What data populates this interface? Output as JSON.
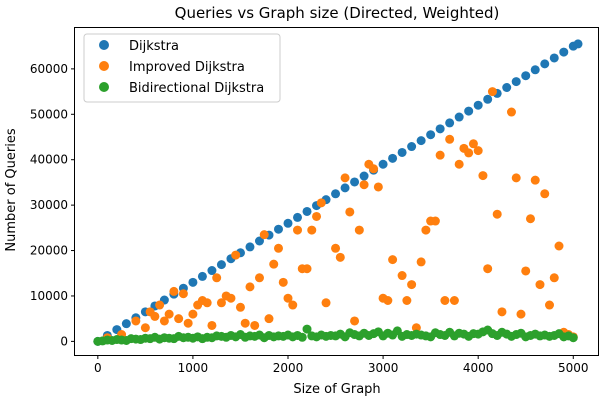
{
  "chart_data": {
    "type": "scatter",
    "title": "Queries vs Graph size (Directed, Weighted)",
    "xlabel": "Size of Graph",
    "ylabel": "Number of Queries",
    "xlim": [
      -240,
      5260
    ],
    "ylim": [
      -3000,
      69000
    ],
    "xticks": [
      0,
      1000,
      2000,
      3000,
      4000,
      5000
    ],
    "yticks": [
      0,
      10000,
      20000,
      30000,
      40000,
      50000,
      60000
    ],
    "grid": false,
    "legend_position": "top-left",
    "series": [
      {
        "name": "Dijkstra",
        "color": "#1f77b4",
        "x": [
          0,
          200,
          400,
          600,
          800,
          1000,
          1200,
          1400,
          1600,
          1800,
          2000,
          2200,
          2400,
          2600,
          2800,
          3000,
          3200,
          3400,
          3600,
          3800,
          4000,
          4200,
          4400,
          4600,
          4800,
          5000,
          100,
          300,
          500,
          700,
          900,
          1100,
          1300,
          1500,
          1700,
          1900,
          2100,
          2300,
          2500,
          2700,
          2900,
          3100,
          3300,
          3500,
          3700,
          3900,
          4100,
          4300,
          4500,
          4700,
          4900,
          5050
        ],
        "y": [
          0,
          2600,
          5200,
          7800,
          10400,
          13000,
          15600,
          18200,
          20800,
          23400,
          26000,
          28600,
          31200,
          33800,
          36400,
          39000,
          41600,
          44200,
          46800,
          49400,
          52000,
          54600,
          57200,
          59800,
          62400,
          65000,
          1300,
          3900,
          6500,
          9100,
          11700,
          14300,
          16900,
          19500,
          22100,
          24700,
          27300,
          29900,
          32500,
          35100,
          37700,
          40300,
          42900,
          45500,
          48100,
          50700,
          53300,
          55900,
          58500,
          61100,
          63700,
          65500
        ]
      },
      {
        "name": "Improved Dijkstra",
        "color": "#ff7f0e",
        "x": [
          100,
          250,
          400,
          500,
          550,
          600,
          650,
          700,
          750,
          800,
          850,
          900,
          950,
          1000,
          1050,
          1100,
          1150,
          1200,
          1250,
          1300,
          1350,
          1400,
          1450,
          1500,
          1550,
          1600,
          1650,
          1700,
          1750,
          1800,
          1850,
          1900,
          1950,
          2000,
          2050,
          2100,
          2150,
          2200,
          2250,
          2300,
          2350,
          2400,
          2500,
          2550,
          2600,
          2650,
          2700,
          2750,
          2800,
          2850,
          2900,
          2950,
          3000,
          3050,
          3100,
          3200,
          3250,
          3300,
          3350,
          3400,
          3450,
          3500,
          3550,
          3600,
          3650,
          3700,
          3750,
          3800,
          3850,
          3900,
          3950,
          4000,
          4050,
          4100,
          4150,
          4200,
          4250,
          4350,
          4400,
          4450,
          4500,
          4550,
          4600,
          4650,
          4700,
          4750,
          4800,
          4850,
          4900,
          4950,
          5000
        ],
        "y": [
          800,
          1500,
          4500,
          3000,
          6500,
          5500,
          8000,
          4500,
          6000,
          11000,
          5000,
          10500,
          4000,
          6000,
          8000,
          9000,
          8500,
          3500,
          14000,
          8500,
          10000,
          9500,
          19000,
          7500,
          4000,
          12000,
          3500,
          14000,
          23500,
          5000,
          17000,
          20500,
          13000,
          9500,
          8000,
          24500,
          16000,
          16000,
          24500,
          27500,
          30500,
          8500,
          20500,
          18500,
          36000,
          28500,
          4500,
          24500,
          34500,
          39000,
          38000,
          34000,
          9500,
          9000,
          18000,
          14500,
          9000,
          12500,
          3000,
          17500,
          24500,
          26500,
          26500,
          41000,
          9000,
          44500,
          9000,
          39000,
          42500,
          41500,
          43500,
          42000,
          36500,
          16000,
          55000,
          28000,
          6500,
          50500,
          36000,
          6000,
          15500,
          27000,
          35500,
          12500,
          32500,
          8000,
          14000,
          21000,
          2000,
          1500,
          1000
        ]
      },
      {
        "name": "Bidirectional Dijkstra",
        "color": "#2ca02c",
        "x": [
          0,
          50,
          100,
          150,
          200,
          250,
          300,
          350,
          400,
          450,
          500,
          550,
          600,
          650,
          700,
          750,
          800,
          850,
          900,
          950,
          1000,
          1050,
          1100,
          1150,
          1200,
          1250,
          1300,
          1350,
          1400,
          1450,
          1500,
          1550,
          1600,
          1650,
          1700,
          1750,
          1800,
          1850,
          1900,
          1950,
          2000,
          2050,
          2100,
          2150,
          2200,
          2250,
          2300,
          2350,
          2400,
          2450,
          2500,
          2550,
          2600,
          2650,
          2700,
          2750,
          2800,
          2850,
          2900,
          2950,
          3000,
          3050,
          3100,
          3150,
          3200,
          3250,
          3300,
          3350,
          3400,
          3450,
          3500,
          3550,
          3600,
          3650,
          3700,
          3750,
          3800,
          3850,
          3900,
          3950,
          4000,
          4050,
          4100,
          4150,
          4200,
          4250,
          4300,
          4350,
          4400,
          4450,
          4500,
          4550,
          4600,
          4650,
          4700,
          4750,
          4800,
          4850,
          4900,
          4950,
          5000
        ],
        "y": [
          0,
          100,
          300,
          200,
          400,
          300,
          200,
          600,
          500,
          400,
          700,
          600,
          900,
          500,
          800,
          700,
          600,
          1100,
          800,
          900,
          700,
          1000,
          600,
          900,
          800,
          1200,
          1100,
          900,
          1300,
          1000,
          1500,
          900,
          1200,
          1100,
          1400,
          800,
          1300,
          1000,
          1200,
          1100,
          1400,
          1000,
          1300,
          900,
          2700,
          1200,
          1000,
          1400,
          1100,
          1300,
          1200,
          1600,
          1000,
          1900,
          1500,
          1200,
          1800,
          1300,
          1700,
          2100,
          1200,
          1800,
          1400,
          2300,
          1100,
          1500,
          1300,
          1600,
          1400,
          1200,
          1000,
          1900,
          1500,
          1300,
          2000,
          1200,
          1800,
          1600,
          1100,
          1700,
          1600,
          2100,
          2500,
          1700,
          1300,
          2000,
          1600,
          1100,
          1500,
          1800,
          1000,
          1300,
          1600,
          1200,
          1400,
          1100,
          1300,
          1700,
          1000,
          1200,
          800
        ]
      }
    ]
  }
}
